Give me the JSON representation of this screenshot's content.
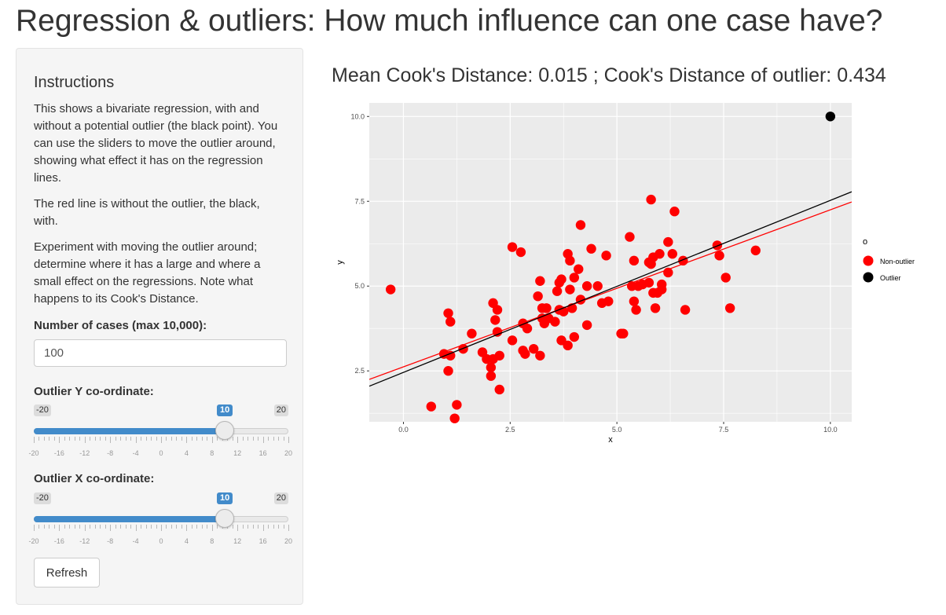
{
  "page": {
    "title": "Regression & outliers: How much influence can one case have?"
  },
  "sidebar": {
    "heading": "Instructions",
    "paragraphs": [
      "This shows a bivariate regression, with and without a potential outlier (the black point). You can use the sliders to move the outlier around, showing what effect it has on the regression lines.",
      "The red line is without the outlier, the black, with.",
      "Experiment with moving the outlier around; determine where it has a large and where a small effect on the regressions. Note what happens to its Cook's Distance."
    ],
    "cases": {
      "label": "Number of cases (max 10,000):",
      "value": "100"
    },
    "slider_y": {
      "label": "Outlier Y co-ordinate:",
      "min": -20,
      "max": 20,
      "value": 10,
      "min_label": "-20",
      "max_label": "20",
      "value_label": "10",
      "ticks": [
        "-20",
        "-16",
        "-12",
        "-8",
        "-4",
        "0",
        "4",
        "8",
        "12",
        "16",
        "20"
      ]
    },
    "slider_x": {
      "label": "Outlier X co-ordinate:",
      "min": -20,
      "max": 20,
      "value": 10,
      "min_label": "-20",
      "max_label": "20",
      "value_label": "10",
      "ticks": [
        "-20",
        "-16",
        "-12",
        "-8",
        "-4",
        "0",
        "4",
        "8",
        "12",
        "16",
        "20"
      ]
    },
    "refresh_label": "Refresh"
  },
  "main": {
    "subtitle": "Mean Cook's Distance: 0.015 ; Cook's Distance of outlier: 0.434"
  },
  "colors": {
    "accent": "#428bca",
    "non_outlier": "#ff0000",
    "outlier": "#000000",
    "panel": "#ebebeb"
  },
  "chart_data": {
    "type": "scatter",
    "xlabel": "x",
    "ylabel": "y",
    "xlim": [
      -0.8,
      10.5
    ],
    "ylim": [
      1.0,
      10.4
    ],
    "xticks": [
      "0.0",
      "2.5",
      "5.0",
      "7.5",
      "10.0"
    ],
    "yticks": [
      "2.5",
      "5.0",
      "7.5",
      "10.0"
    ],
    "grid": true,
    "legend": {
      "title": "o",
      "position": "right",
      "entries": [
        "Non-outlier",
        "Outlier"
      ]
    },
    "series": [
      {
        "name": "Non-outlier",
        "points": [
          [
            -0.3,
            4.9
          ],
          [
            0.65,
            1.45
          ],
          [
            0.95,
            3.0
          ],
          [
            1.05,
            2.5
          ],
          [
            1.05,
            4.2
          ],
          [
            1.1,
            2.95
          ],
          [
            1.1,
            3.95
          ],
          [
            1.2,
            1.1
          ],
          [
            1.25,
            1.5
          ],
          [
            1.4,
            3.15
          ],
          [
            1.6,
            3.6
          ],
          [
            1.85,
            3.05
          ],
          [
            1.95,
            2.85
          ],
          [
            2.05,
            2.35
          ],
          [
            2.05,
            2.6
          ],
          [
            2.1,
            2.85
          ],
          [
            2.1,
            4.5
          ],
          [
            2.15,
            4.0
          ],
          [
            2.2,
            3.65
          ],
          [
            2.2,
            4.3
          ],
          [
            2.25,
            2.95
          ],
          [
            2.25,
            1.95
          ],
          [
            2.55,
            6.15
          ],
          [
            2.55,
            3.4
          ],
          [
            2.75,
            6.0
          ],
          [
            2.8,
            3.9
          ],
          [
            2.9,
            3.75
          ],
          [
            2.85,
            3.0
          ],
          [
            2.8,
            3.1
          ],
          [
            3.05,
            3.15
          ],
          [
            3.2,
            2.95
          ],
          [
            3.15,
            4.7
          ],
          [
            3.2,
            5.15
          ],
          [
            3.25,
            4.35
          ],
          [
            3.25,
            4.05
          ],
          [
            3.3,
            3.9
          ],
          [
            3.35,
            4.35
          ],
          [
            3.4,
            4.05
          ],
          [
            3.55,
            3.95
          ],
          [
            3.6,
            4.85
          ],
          [
            3.65,
            5.1
          ],
          [
            3.65,
            4.3
          ],
          [
            3.7,
            5.2
          ],
          [
            3.7,
            3.4
          ],
          [
            3.75,
            4.25
          ],
          [
            3.85,
            5.95
          ],
          [
            3.85,
            3.25
          ],
          [
            3.9,
            4.9
          ],
          [
            3.9,
            5.75
          ],
          [
            3.95,
            4.35
          ],
          [
            4.0,
            3.5
          ],
          [
            4.0,
            5.25
          ],
          [
            4.1,
            5.5
          ],
          [
            4.15,
            4.6
          ],
          [
            4.15,
            6.8
          ],
          [
            4.3,
            5.0
          ],
          [
            4.3,
            3.85
          ],
          [
            4.4,
            6.1
          ],
          [
            4.55,
            5.0
          ],
          [
            4.65,
            4.5
          ],
          [
            4.75,
            5.9
          ],
          [
            4.8,
            4.55
          ],
          [
            5.1,
            3.6
          ],
          [
            5.15,
            3.6
          ],
          [
            5.3,
            6.45
          ],
          [
            5.35,
            5.0
          ],
          [
            5.4,
            4.55
          ],
          [
            5.4,
            5.75
          ],
          [
            5.45,
            4.3
          ],
          [
            5.5,
            5.0
          ],
          [
            5.6,
            5.05
          ],
          [
            5.75,
            5.1
          ],
          [
            5.75,
            5.7
          ],
          [
            5.8,
            5.65
          ],
          [
            5.8,
            7.55
          ],
          [
            5.85,
            5.85
          ],
          [
            5.85,
            4.8
          ],
          [
            5.9,
            4.35
          ],
          [
            5.95,
            4.8
          ],
          [
            6.0,
            5.95
          ],
          [
            6.05,
            5.05
          ],
          [
            6.05,
            4.9
          ],
          [
            6.2,
            5.4
          ],
          [
            6.2,
            6.3
          ],
          [
            6.3,
            5.95
          ],
          [
            6.35,
            7.2
          ],
          [
            6.55,
            5.75
          ],
          [
            6.6,
            4.3
          ],
          [
            7.35,
            6.2
          ],
          [
            7.4,
            5.9
          ],
          [
            7.55,
            5.25
          ],
          [
            7.65,
            4.35
          ],
          [
            8.25,
            6.05
          ]
        ]
      },
      {
        "name": "Outlier",
        "points": [
          [
            10,
            10
          ]
        ]
      }
    ],
    "lines": [
      {
        "name": "without outlier",
        "color": "#ff0000",
        "x": [
          -0.8,
          10.5
        ],
        "y": [
          2.25,
          7.48
        ]
      },
      {
        "name": "with outlier",
        "color": "#000000",
        "x": [
          -0.8,
          10.5
        ],
        "y": [
          2.05,
          7.78
        ]
      }
    ]
  }
}
